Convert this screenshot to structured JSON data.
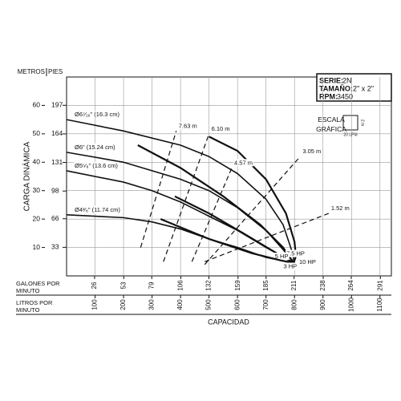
{
  "chart_data": {
    "type": "line",
    "series_label": "SERIE:",
    "series_value": "2N",
    "size_label": "TAMAÑO:",
    "size_value": "2\" x 2\"",
    "rpm_label": "RPM:",
    "rpm_value": "3450",
    "scale_title": "ESCALA GRÁFICA",
    "scale_y": "2 m",
    "scale_x": "20 LPM",
    "ylabel_left": "METROS",
    "ylabel_right": "PIES",
    "ylabel": "CARGA DINÁMICA",
    "x2label": "GALONES POR MINUTO",
    "x1label": "LITROS POR MINUTO",
    "xlabel": "CAPACIDAD",
    "xlim": [
      0,
      1140
    ],
    "xticks": [
      100,
      200,
      300,
      400,
      500,
      600,
      700,
      800,
      900,
      1000,
      1100
    ],
    "x2lim": [
      0,
      301.2
    ],
    "x2ticks": [
      26,
      53,
      79,
      106,
      132,
      159,
      185,
      211,
      238,
      264,
      291
    ],
    "ylim": [
      0,
      70
    ],
    "yticks": [
      10,
      20,
      30,
      40,
      50,
      60
    ],
    "y2lim": [
      0,
      229.7
    ],
    "y2ticks": [
      33,
      66,
      98,
      131,
      164,
      197
    ],
    "grid": true,
    "series": [
      {
        "name": "Ø6⁷⁄₁₆\" (16.3 cm)",
        "color": "#111",
        "line_style": "solid",
        "x": [
          0,
          200,
          400,
          500,
          600,
          700,
          760,
          790,
          800
        ],
        "values": [
          55,
          51,
          46,
          42,
          36,
          27,
          18,
          9,
          4.5
        ]
      },
      {
        "name": "Ø6\" (15.24 cm)",
        "color": "#111",
        "line_style": "solid",
        "x": [
          0,
          200,
          400,
          500,
          600,
          700,
          780,
          800
        ],
        "values": [
          43.5,
          40,
          34,
          30,
          24,
          16,
          7,
          4.5
        ]
      },
      {
        "name": "Ø5⁵⁄₈\" (13.6 cm)",
        "color": "#111",
        "line_style": "solid",
        "x": [
          0,
          200,
          300,
          400,
          500,
          600,
          700,
          800
        ],
        "values": [
          37,
          33,
          30,
          26,
          21,
          16,
          10,
          4.5
        ]
      },
      {
        "name": "Ø4³⁄₈\" (11.74 cm)",
        "color": "#111",
        "line_style": "solid",
        "x": [
          0,
          200,
          300,
          400,
          500,
          600,
          700,
          800
        ],
        "values": [
          21.5,
          20.5,
          19,
          16.5,
          13,
          10,
          6.5,
          4.5
        ]
      },
      {
        "name": "10 HP",
        "color": "#111",
        "line_style": "bold",
        "x": [
          500,
          600,
          700,
          770,
          800,
          805,
          797
        ],
        "values": [
          49,
          44,
          34,
          22,
          12,
          7,
          4.5
        ]
      },
      {
        "name": "7.5 HP",
        "color": "#111",
        "line_style": "bold",
        "x": [
          250,
          400,
          550,
          680,
          760,
          797
        ],
        "values": [
          46,
          38,
          28,
          18,
          10,
          4.5
        ]
      },
      {
        "name": "5 HP",
        "color": "#111",
        "line_style": "bold",
        "x": [
          380,
          500,
          620,
          720,
          797
        ],
        "values": [
          28,
          22,
          15,
          9,
          4.5
        ]
      },
      {
        "name": "3 HP",
        "color": "#111",
        "line_style": "bold",
        "x": [
          330,
          500,
          650,
          750,
          797
        ],
        "values": [
          20,
          13,
          8,
          5.5,
          4.5
        ]
      },
      {
        "name": "7.63 m",
        "color": "#111",
        "line_style": "dashed",
        "x": [
          260,
          385
        ],
        "values": [
          10,
          51
        ]
      },
      {
        "name": "6.10 m",
        "color": "#111",
        "line_style": "dashed",
        "x": [
          340,
          500
        ],
        "values": [
          5,
          50
        ]
      },
      {
        "name": "4.57 m",
        "color": "#111",
        "line_style": "dashed",
        "x": [
          440,
          580
        ],
        "values": [
          5,
          38
        ]
      },
      {
        "name": "3.05 m",
        "color": "#111",
        "line_style": "dashed",
        "x": [
          485,
          820
        ],
        "values": [
          4,
          42
        ]
      },
      {
        "name": "1.52 m",
        "color": "#111",
        "line_style": "dashed",
        "x": [
          485,
          920
        ],
        "values": [
          5,
          22
        ]
      }
    ]
  }
}
